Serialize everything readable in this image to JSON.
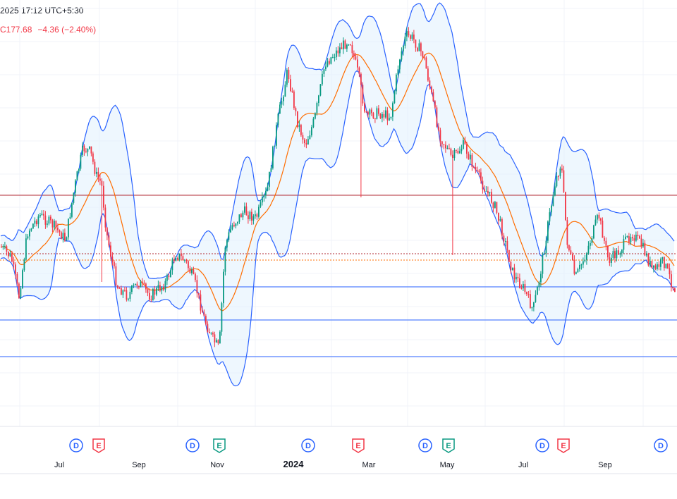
{
  "header": {
    "datetime": "2025 17:12 UTC+5:30",
    "quote_prefix": "C",
    "last": "177.68",
    "change": "−4.36 (−2.40%)"
  },
  "colors": {
    "up": "#089981",
    "down": "#f23645",
    "bands": "#2962ff",
    "basis": "#ff6d00",
    "band_fill": "#e3f2fd",
    "hline_red": "#b22833",
    "hline_blue": "#2962ff",
    "grid": "#f0f3fa",
    "axis_text": "#131722",
    "event_dividend": "#2962ff",
    "event_earnings_neg": "#f23645",
    "event_earnings_pos": "#089981"
  },
  "chart_data": {
    "type": "candlestick",
    "overlays": [
      "bollinger-bands",
      "basis-moving-average",
      "horizontal-lines"
    ],
    "x_tick_labels": [
      "Jul",
      "Sep",
      "Nov",
      "2024",
      "Mar",
      "May",
      "Jul",
      "Sep"
    ],
    "events": [
      {
        "label": "D",
        "kind": "dividend"
      },
      {
        "label": "E",
        "kind": "earnings-negative"
      },
      {
        "label": "D",
        "kind": "dividend"
      },
      {
        "label": "E",
        "kind": "earnings-positive"
      },
      {
        "label": "D",
        "kind": "dividend"
      },
      {
        "label": "E",
        "kind": "earnings-negative"
      },
      {
        "label": "D",
        "kind": "dividend"
      },
      {
        "label": "E",
        "kind": "earnings-positive"
      },
      {
        "label": "D",
        "kind": "dividend"
      },
      {
        "label": "E",
        "kind": "earnings-negative"
      },
      {
        "label": "D",
        "kind": "dividend"
      }
    ],
    "grid": true,
    "y_axis_visible": false
  }
}
